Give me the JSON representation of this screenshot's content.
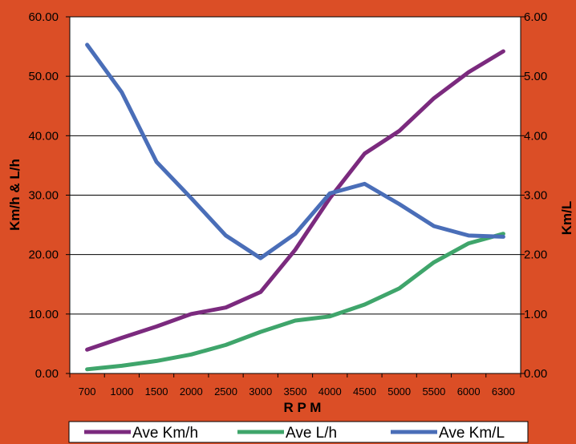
{
  "chart_data": {
    "type": "line",
    "categories": [
      "700",
      "1000",
      "1500",
      "2000",
      "2500",
      "3000",
      "3500",
      "4000",
      "4500",
      "5000",
      "5500",
      "6000",
      "6300"
    ],
    "xlabel": "R P M",
    "ylabel_left": "Km/h & L/h",
    "ylabel_right": "Km/L",
    "ylim_left": [
      0,
      60
    ],
    "ylim_right": [
      0,
      6
    ],
    "yticks_left": [
      "0.00",
      "10.00",
      "20.00",
      "30.00",
      "40.00",
      "50.00",
      "60.00"
    ],
    "yticks_right": [
      "0.00",
      "1.00",
      "2.00",
      "3.00",
      "4.00",
      "5.00",
      "6.00"
    ],
    "grid": "horizontal",
    "legend_position": "bottom",
    "series": [
      {
        "name": "Ave Km/h",
        "axis": "left",
        "color": "#7B2A7E",
        "values": [
          4.0,
          6.0,
          7.9,
          10.0,
          11.1,
          13.7,
          20.8,
          29.5,
          37.0,
          40.8,
          46.3,
          50.7,
          54.2
        ]
      },
      {
        "name": "Ave L/h",
        "axis": "left",
        "color": "#3FA56B",
        "values": [
          0.7,
          1.3,
          2.1,
          3.2,
          4.8,
          7.0,
          8.9,
          9.6,
          11.6,
          14.3,
          18.7,
          21.9,
          23.5
        ]
      },
      {
        "name": "Ave Km/L",
        "axis": "right",
        "color": "#4A6EB8",
        "values": [
          5.53,
          4.73,
          3.56,
          2.95,
          2.32,
          1.94,
          2.35,
          3.03,
          3.19,
          2.85,
          2.48,
          2.32,
          2.3
        ]
      }
    ]
  }
}
